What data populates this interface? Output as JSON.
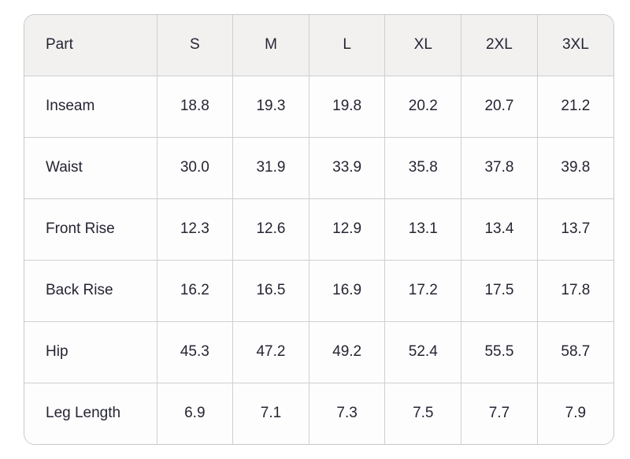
{
  "table": {
    "columns": [
      "Part",
      "S",
      "M",
      "L",
      "XL",
      "2XL",
      "3XL"
    ],
    "rows": [
      [
        "Inseam",
        "18.8",
        "19.3",
        "19.8",
        "20.2",
        "20.7",
        "21.2"
      ],
      [
        "Waist",
        "30.0",
        "31.9",
        "33.9",
        "35.8",
        "37.8",
        "39.8"
      ],
      [
        "Front Rise",
        "12.3",
        "12.6",
        "12.9",
        "13.1",
        "13.4",
        "13.7"
      ],
      [
        "Back Rise",
        "16.2",
        "16.5",
        "16.9",
        "17.2",
        "17.5",
        "17.8"
      ],
      [
        "Hip",
        "45.3",
        "47.2",
        "49.2",
        "52.4",
        "55.5",
        "58.7"
      ],
      [
        "Leg Length",
        "6.9",
        "7.1",
        "7.3",
        "7.5",
        "7.7",
        "7.9"
      ]
    ]
  },
  "colors": {
    "header_background": "#f2f1f0",
    "cell_background": "#fdfdfd",
    "grid_line": "#cfcfcf",
    "text": "#252533"
  },
  "chart_data": {
    "type": "table",
    "title": "",
    "columns": [
      "Part",
      "S",
      "M",
      "L",
      "XL",
      "2XL",
      "3XL"
    ],
    "categories": [
      "S",
      "M",
      "L",
      "XL",
      "2XL",
      "3XL"
    ],
    "series": [
      {
        "name": "Inseam",
        "values": [
          18.8,
          19.3,
          19.8,
          20.2,
          20.7,
          21.2
        ]
      },
      {
        "name": "Waist",
        "values": [
          30.0,
          31.9,
          33.9,
          35.8,
          37.8,
          39.8
        ]
      },
      {
        "name": "Front Rise",
        "values": [
          12.3,
          12.6,
          12.9,
          13.1,
          13.4,
          13.7
        ]
      },
      {
        "name": "Back Rise",
        "values": [
          16.2,
          16.5,
          16.9,
          17.2,
          17.5,
          17.8
        ]
      },
      {
        "name": "Hip",
        "values": [
          45.3,
          47.2,
          49.2,
          52.4,
          55.5,
          58.7
        ]
      },
      {
        "name": "Leg Length",
        "values": [
          6.9,
          7.1,
          7.3,
          7.5,
          7.7,
          7.9
        ]
      }
    ]
  }
}
